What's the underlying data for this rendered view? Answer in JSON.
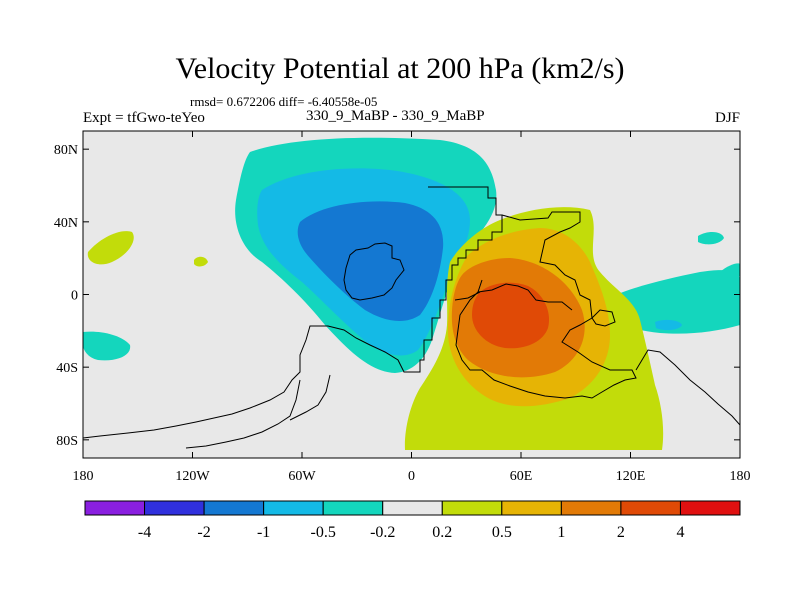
{
  "chart_data": {
    "type": "heatmap",
    "title": "Velocity Potential at 200 hPa (km2/s)",
    "stats_label": "rmsd= 0.672206 diff= -6.40558e-05",
    "left_label": "Expt = tfGwo-teYeo",
    "center_label": "330_9_MaBP - 330_9_MaBP",
    "right_label": "DJF",
    "x_tick_labels": [
      "180",
      "120W",
      "60W",
      "0",
      "60E",
      "120E",
      "180"
    ],
    "x_tick_values": [
      -180,
      -120,
      -60,
      0,
      60,
      120,
      180
    ],
    "y_tick_labels": [
      "80N",
      "40N",
      "0",
      "40S",
      "80S"
    ],
    "y_tick_values": [
      80,
      40,
      0,
      -40,
      -80
    ],
    "xlim": [
      -180,
      180
    ],
    "ylim": [
      -90,
      90
    ],
    "colorbar": {
      "levels": [
        "-4",
        "-2",
        "-1",
        "-0.5",
        "-0.2",
        "0.2",
        "0.5",
        "1",
        "2",
        "4"
      ],
      "colors": [
        "#8a1fe0",
        "#3030dd",
        "#1478d2",
        "#14bae6",
        "#14d6bd",
        "#e8e8e8",
        "#c2dc0a",
        "#e6b405",
        "#e27a06",
        "#e04a06",
        "#e01010"
      ]
    },
    "features": [
      {
        "sign": "negative",
        "center": [
          -22,
          12
        ],
        "min_level": "-2",
        "region": "central/eastern Atlantic and South America"
      },
      {
        "sign": "positive",
        "center": [
          45,
          -10
        ],
        "max_level": "4",
        "region": "Africa and western Indian Ocean"
      }
    ]
  }
}
